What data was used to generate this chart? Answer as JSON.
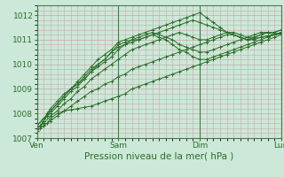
{
  "bg_color": "#cce8d8",
  "grid_color": "#c8a8a8",
  "line_color": "#2a6e2a",
  "marker_color": "#2a6e2a",
  "xlabel": "Pression niveau de la mer( hPa )",
  "xlabel_fontsize": 7.5,
  "tick_fontsize": 6.5,
  "ylim": [
    1007.0,
    1012.4
  ],
  "yticks": [
    1007,
    1008,
    1009,
    1010,
    1011,
    1012
  ],
  "day_labels": [
    "Ven",
    "Sam",
    "Dim",
    "Lun"
  ],
  "day_positions": [
    0,
    72,
    144,
    216
  ],
  "total_hours": 216,
  "lines": [
    {
      "x": [
        0,
        3,
        6,
        9,
        12,
        18,
        24,
        30,
        36,
        42,
        48,
        54,
        60,
        66,
        72,
        78,
        84,
        90,
        96,
        102,
        108,
        114,
        120,
        126,
        132,
        138,
        144,
        150,
        156,
        162,
        168,
        174,
        180,
        186,
        192,
        198,
        204,
        210,
        216
      ],
      "y": [
        1007.3,
        1007.4,
        1007.5,
        1007.6,
        1007.8,
        1008.0,
        1008.1,
        1008.15,
        1008.2,
        1008.25,
        1008.3,
        1008.4,
        1008.5,
        1008.6,
        1008.7,
        1008.8,
        1009.0,
        1009.1,
        1009.2,
        1009.3,
        1009.4,
        1009.5,
        1009.6,
        1009.7,
        1009.8,
        1009.9,
        1010.0,
        1010.1,
        1010.2,
        1010.3,
        1010.4,
        1010.5,
        1010.6,
        1010.7,
        1010.8,
        1010.9,
        1011.0,
        1011.1,
        1011.2
      ]
    },
    {
      "x": [
        0,
        3,
        6,
        9,
        12,
        18,
        24,
        30,
        36,
        42,
        48,
        54,
        60,
        66,
        72,
        78,
        84,
        90,
        96,
        102,
        108,
        114,
        120,
        126,
        132,
        138,
        144,
        150,
        156,
        162,
        168,
        174,
        180,
        186,
        192,
        198,
        204,
        210,
        216
      ],
      "y": [
        1007.4,
        1007.5,
        1007.7,
        1008.0,
        1008.2,
        1008.5,
        1008.8,
        1009.0,
        1009.2,
        1009.5,
        1009.8,
        1010.0,
        1010.2,
        1010.5,
        1010.8,
        1010.9,
        1011.0,
        1011.0,
        1011.1,
        1011.2,
        1011.1,
        1011.0,
        1010.8,
        1010.6,
        1010.5,
        1010.3,
        1010.2,
        1010.2,
        1010.3,
        1010.4,
        1010.5,
        1010.6,
        1010.7,
        1010.8,
        1010.9,
        1011.0,
        1011.1,
        1011.2,
        1011.3
      ]
    },
    {
      "x": [
        0,
        3,
        6,
        9,
        12,
        18,
        24,
        30,
        36,
        42,
        48,
        54,
        60,
        66,
        72,
        78,
        84,
        90,
        96,
        102,
        108,
        114,
        120,
        126,
        132,
        138,
        144,
        150,
        156,
        162,
        168,
        174,
        180,
        186,
        192,
        198,
        204,
        210,
        216
      ],
      "y": [
        1007.4,
        1007.5,
        1007.7,
        1007.9,
        1008.1,
        1008.4,
        1008.7,
        1009.0,
        1009.2,
        1009.4,
        1009.7,
        1010.0,
        1010.2,
        1010.5,
        1010.7,
        1010.8,
        1011.0,
        1011.1,
        1011.2,
        1011.3,
        1011.2,
        1011.1,
        1011.0,
        1010.8,
        1010.7,
        1010.6,
        1010.5,
        1010.5,
        1010.6,
        1010.7,
        1010.8,
        1010.9,
        1011.0,
        1011.1,
        1011.2,
        1011.3,
        1011.3,
        1011.2,
        1011.3
      ]
    },
    {
      "x": [
        0,
        6,
        12,
        18,
        24,
        30,
        36,
        42,
        48,
        54,
        60,
        66,
        72,
        78,
        84,
        90,
        96,
        102,
        108,
        114,
        120,
        126,
        132,
        138,
        144,
        150,
        156,
        162,
        168,
        174,
        180,
        186,
        192,
        198,
        204,
        210,
        216
      ],
      "y": [
        1007.5,
        1007.8,
        1008.1,
        1008.4,
        1008.7,
        1009.0,
        1009.3,
        1009.6,
        1009.9,
        1010.2,
        1010.4,
        1010.6,
        1010.9,
        1011.0,
        1011.1,
        1011.2,
        1011.3,
        1011.4,
        1011.5,
        1011.6,
        1011.7,
        1011.8,
        1011.9,
        1012.0,
        1012.1,
        1011.9,
        1011.7,
        1011.5,
        1011.3,
        1011.2,
        1011.1,
        1011.0,
        1011.05,
        1011.1,
        1011.15,
        1011.2,
        1011.3
      ]
    },
    {
      "x": [
        0,
        6,
        12,
        18,
        24,
        30,
        36,
        42,
        48,
        54,
        60,
        66,
        72,
        78,
        84,
        90,
        96,
        102,
        108,
        114,
        120,
        126,
        132,
        138,
        144,
        150,
        156,
        162,
        168,
        174,
        180,
        186,
        192,
        198,
        204,
        210,
        216
      ],
      "y": [
        1007.5,
        1007.8,
        1008.0,
        1008.3,
        1008.6,
        1008.9,
        1009.1,
        1009.4,
        1009.7,
        1009.9,
        1010.1,
        1010.3,
        1010.6,
        1010.8,
        1010.9,
        1011.0,
        1011.1,
        1011.2,
        1011.3,
        1011.4,
        1011.5,
        1011.6,
        1011.7,
        1011.8,
        1011.7,
        1011.6,
        1011.5,
        1011.4,
        1011.3,
        1011.2,
        1011.1,
        1011.0,
        1011.0,
        1011.1,
        1011.15,
        1011.2,
        1011.25
      ]
    },
    {
      "x": [
        0,
        6,
        12,
        18,
        24,
        30,
        36,
        42,
        48,
        54,
        60,
        66,
        72,
        78,
        84,
        90,
        96,
        102,
        108,
        114,
        120,
        126,
        132,
        138,
        144,
        150,
        156,
        162,
        168,
        174,
        180,
        186,
        192,
        198,
        204,
        210,
        216
      ],
      "y": [
        1007.4,
        1007.6,
        1007.9,
        1008.1,
        1008.4,
        1008.6,
        1008.9,
        1009.1,
        1009.4,
        1009.6,
        1009.8,
        1010.0,
        1010.2,
        1010.4,
        1010.6,
        1010.7,
        1010.8,
        1010.9,
        1011.0,
        1011.1,
        1011.2,
        1011.3,
        1011.2,
        1011.1,
        1011.0,
        1011.0,
        1011.1,
        1011.2,
        1011.3,
        1011.3,
        1011.2,
        1011.1,
        1011.1,
        1011.2,
        1011.3,
        1011.3,
        1011.4
      ]
    },
    {
      "x": [
        0,
        6,
        12,
        18,
        24,
        30,
        36,
        42,
        48,
        54,
        60,
        66,
        72,
        78,
        84,
        90,
        96,
        102,
        108,
        114,
        120,
        126,
        132,
        138,
        144,
        150,
        156,
        162,
        168,
        174,
        180,
        186,
        192,
        198,
        204,
        210,
        216
      ],
      "y": [
        1007.3,
        1007.5,
        1007.7,
        1007.9,
        1008.1,
        1008.3,
        1008.5,
        1008.7,
        1008.9,
        1009.0,
        1009.2,
        1009.3,
        1009.5,
        1009.6,
        1009.8,
        1009.9,
        1010.0,
        1010.1,
        1010.2,
        1010.3,
        1010.4,
        1010.5,
        1010.6,
        1010.7,
        1010.8,
        1010.9,
        1011.0,
        1011.1,
        1011.2,
        1011.2,
        1011.1,
        1011.0,
        1011.1,
        1011.2,
        1011.3,
        1011.3,
        1011.4
      ]
    }
  ]
}
